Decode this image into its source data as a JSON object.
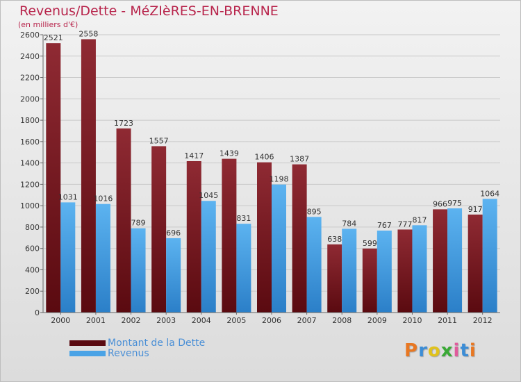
{
  "title": "Revenus/Dette - MéZIèRES-EN-BRENNE",
  "subtitle": "(en milliers d'€)",
  "logo": {
    "letters": [
      "P",
      "r",
      "o",
      "x",
      "i",
      "t",
      "i"
    ],
    "colors": [
      "#e87722",
      "#3c8dd6",
      "#e0c21c",
      "#39a935",
      "#e05a9c",
      "#3c8dd6",
      "#e87722"
    ]
  },
  "chart_data": {
    "type": "bar",
    "categories": [
      "2000",
      "2001",
      "2002",
      "2003",
      "2004",
      "2005",
      "2006",
      "2007",
      "2008",
      "2009",
      "2010",
      "2011",
      "2012"
    ],
    "series": [
      {
        "name": "Montant de la Dette",
        "color": "#7a1f25",
        "values": [
          2521,
          2558,
          1723,
          1557,
          1417,
          1439,
          1406,
          1387,
          638,
          599,
          777,
          966,
          917
        ]
      },
      {
        "name": "Revenus",
        "color": "#4aa3e6",
        "values": [
          1031,
          1016,
          789,
          696,
          1045,
          831,
          1198,
          895,
          784,
          767,
          817,
          975,
          1064
        ]
      }
    ],
    "yticks": [
      "0",
      "200",
      "400",
      "600",
      "800",
      "1000",
      "1200",
      "1400",
      "1600",
      "1800",
      "2000",
      "2200",
      "2400",
      "2600"
    ],
    "ylim": [
      0,
      2600
    ],
    "grid": true,
    "legend_position": "bottom-left"
  }
}
